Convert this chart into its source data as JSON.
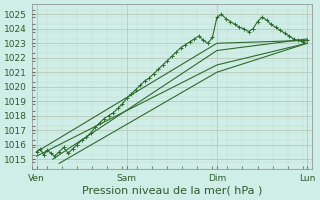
{
  "title": "Pression niveau de la mer( hPa )",
  "bg_color": "#d0eee8",
  "grid_major_color": "#b8c8b8",
  "grid_minor_color": "#c8d8c8",
  "line_color": "#2d6a2d",
  "ylim": [
    1014.3,
    1025.7
  ],
  "yticks": [
    1015,
    1016,
    1017,
    1018,
    1019,
    1020,
    1021,
    1022,
    1023,
    1024,
    1025
  ],
  "xlim": [
    -0.05,
    3.05
  ],
  "xtick_labels": [
    "Ven",
    "Sam",
    "Dim",
    "Lun"
  ],
  "xtick_positions": [
    0,
    1,
    2,
    3
  ],
  "noisy_line": {
    "x": [
      0.0,
      0.04,
      0.08,
      0.12,
      0.16,
      0.2,
      0.25,
      0.3,
      0.35,
      0.4,
      0.45,
      0.5,
      0.55,
      0.6,
      0.65,
      0.7,
      0.75,
      0.8,
      0.85,
      0.9,
      0.95,
      1.0,
      1.05,
      1.1,
      1.15,
      1.2,
      1.25,
      1.3,
      1.35,
      1.4,
      1.45,
      1.5,
      1.55,
      1.6,
      1.65,
      1.7,
      1.75,
      1.8,
      1.85,
      1.9,
      1.95,
      2.0,
      2.05,
      2.1,
      2.15,
      2.2,
      2.25,
      2.3,
      2.35,
      2.4,
      2.45,
      2.5,
      2.55,
      2.6,
      2.65,
      2.7,
      2.75,
      2.8,
      2.85,
      2.9,
      2.95,
      3.0
    ],
    "y": [
      1015.5,
      1015.7,
      1015.3,
      1015.6,
      1015.4,
      1015.2,
      1015.5,
      1015.8,
      1015.4,
      1015.7,
      1016.0,
      1016.3,
      1016.5,
      1016.8,
      1017.2,
      1017.5,
      1017.8,
      1018.0,
      1018.2,
      1018.5,
      1018.8,
      1019.2,
      1019.5,
      1019.8,
      1020.1,
      1020.4,
      1020.6,
      1020.9,
      1021.2,
      1021.5,
      1021.8,
      1022.1,
      1022.4,
      1022.7,
      1022.9,
      1023.1,
      1023.3,
      1023.5,
      1023.2,
      1023.0,
      1023.4,
      1024.8,
      1025.0,
      1024.7,
      1024.5,
      1024.3,
      1024.1,
      1024.0,
      1023.8,
      1024.0,
      1024.5,
      1024.8,
      1024.6,
      1024.3,
      1024.1,
      1023.9,
      1023.7,
      1023.5,
      1023.3,
      1023.2,
      1023.1,
      1023.2
    ]
  },
  "straight_lines": [
    {
      "x": [
        0.0,
        2.0,
        3.0
      ],
      "y": [
        1015.5,
        1023.0,
        1023.2
      ]
    },
    {
      "x": [
        0.0,
        2.0,
        3.0
      ],
      "y": [
        1015.2,
        1021.5,
        1023.0
      ]
    },
    {
      "x": [
        0.18,
        2.0,
        3.0
      ],
      "y": [
        1015.0,
        1022.5,
        1023.3
      ]
    },
    {
      "x": [
        0.25,
        2.0,
        3.0
      ],
      "y": [
        1014.7,
        1021.0,
        1023.0
      ]
    }
  ],
  "tick_fontsize": 6.5,
  "xlabel_fontsize": 8
}
